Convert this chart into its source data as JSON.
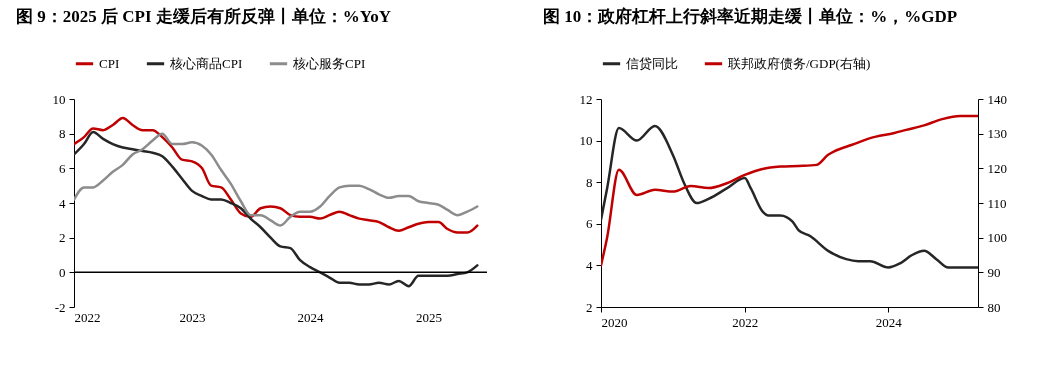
{
  "chart_data": [
    {
      "type": "line",
      "title": "图 9：2025 后 CPI 走缓后有所反弹丨单位：%YoY",
      "legend": "top",
      "grid": false,
      "x": [
        "2022-01",
        "2022-02",
        "2022-03",
        "2022-04",
        "2022-05",
        "2022-06",
        "2022-07",
        "2022-08",
        "2022-09",
        "2022-10",
        "2022-11",
        "2022-12",
        "2023-01",
        "2023-02",
        "2023-03",
        "2023-04",
        "2023-05",
        "2023-06",
        "2023-07",
        "2023-08",
        "2023-09",
        "2023-10",
        "2023-11",
        "2023-12",
        "2024-01",
        "2024-02",
        "2024-03",
        "2024-04",
        "2024-05",
        "2024-06",
        "2024-07",
        "2024-08",
        "2024-09",
        "2024-10",
        "2024-11",
        "2024-12",
        "2025-01",
        "2025-02",
        "2025-03",
        "2025-04",
        "2025-05",
        "2025-06"
      ],
      "xlim": [
        "2022-01",
        "2025-07"
      ],
      "xticks": [
        "2022",
        "2023",
        "2024",
        "2025"
      ],
      "ylim": [
        -2,
        10
      ],
      "yticks": [
        -2,
        0,
        2,
        4,
        6,
        8,
        10
      ],
      "ref_lines": [
        {
          "axis": "y",
          "value": 0,
          "color": "#000000"
        }
      ],
      "series": [
        {
          "name": "CPI",
          "color": "#c00000",
          "values": [
            7.4,
            7.8,
            8.3,
            8.2,
            8.5,
            8.9,
            8.5,
            8.2,
            8.2,
            7.8,
            7.2,
            6.5,
            6.4,
            6.0,
            5.0,
            4.9,
            4.2,
            3.4,
            3.2,
            3.7,
            3.8,
            3.7,
            3.3,
            3.2,
            3.2,
            3.1,
            3.3,
            3.5,
            3.3,
            3.1,
            3.0,
            2.9,
            2.6,
            2.4,
            2.6,
            2.8,
            2.9,
            2.9,
            2.5,
            2.3,
            2.3,
            2.7
          ]
        },
        {
          "name": "核心商品CPI",
          "color": "#262626",
          "values": [
            6.8,
            7.4,
            8.1,
            7.7,
            7.4,
            7.2,
            7.1,
            7.0,
            6.9,
            6.7,
            6.1,
            5.4,
            4.7,
            4.4,
            4.2,
            4.2,
            4.0,
            3.7,
            3.1,
            2.6,
            2.0,
            1.5,
            1.4,
            0.7,
            0.3,
            0.0,
            -0.3,
            -0.6,
            -0.6,
            -0.7,
            -0.7,
            -0.6,
            -0.7,
            -0.5,
            -0.8,
            -0.2,
            -0.2,
            -0.2,
            -0.2,
            -0.1,
            0.0,
            0.4
          ]
        },
        {
          "name": "核心服务CPI",
          "color": "#8c8c8c",
          "values": [
            4.2,
            4.9,
            4.9,
            5.3,
            5.8,
            6.2,
            6.8,
            7.1,
            7.6,
            8.0,
            7.4,
            7.4,
            7.5,
            7.3,
            6.8,
            5.9,
            5.1,
            4.1,
            3.3,
            3.3,
            3.0,
            2.7,
            3.2,
            3.5,
            3.5,
            3.8,
            4.4,
            4.9,
            5.0,
            5.0,
            4.8,
            4.5,
            4.3,
            4.4,
            4.4,
            4.1,
            4.0,
            3.9,
            3.6,
            3.3,
            3.5,
            3.8
          ]
        }
      ]
    },
    {
      "type": "line",
      "title": "图 10：政府杠杆上行斜率近期走缓丨单位：%，%GDP",
      "legend": "top",
      "grid": false,
      "xlim": [
        "2020-01",
        "2025-04"
      ],
      "xticks": [
        "2020",
        "2022",
        "2024"
      ],
      "ylim": [
        2,
        12
      ],
      "yticks": [
        2,
        4,
        6,
        8,
        10,
        12
      ],
      "y2lim": [
        80,
        140
      ],
      "y2ticks": [
        80,
        90,
        100,
        110,
        120,
        130,
        140
      ],
      "series": [
        {
          "name": "信贷同比",
          "color": "#262626",
          "x": [
            "2020-01",
            "2020-02",
            "2020-04",
            "2020-07",
            "2020-10",
            "2021-01",
            "2021-03",
            "2021-05",
            "2021-07",
            "2021-10",
            "2022-01",
            "2022-02",
            "2022-04",
            "2022-05",
            "2022-07",
            "2022-09",
            "2022-10",
            "2022-12",
            "2023-03",
            "2023-06",
            "2023-08",
            "2023-10",
            "2024-01",
            "2024-03",
            "2024-05",
            "2024-07",
            "2024-09",
            "2024-11",
            "2025-02",
            "2025-04"
          ],
          "values": [
            6.2,
            7.7,
            10.6,
            10.0,
            10.7,
            9.3,
            7.9,
            7.0,
            7.2,
            7.7,
            8.2,
            7.7,
            6.6,
            6.4,
            6.4,
            6.1,
            5.7,
            5.4,
            4.7,
            4.3,
            4.2,
            4.2,
            3.9,
            4.1,
            4.5,
            4.7,
            4.3,
            3.9,
            3.9,
            3.9
          ]
        },
        {
          "name": "联邦政府债务/GDP(右轴)",
          "color": "#c00000",
          "axis": "y2",
          "x": [
            "2020-01",
            "2020-02",
            "2020-04",
            "2020-07",
            "2020-10",
            "2021-01",
            "2021-04",
            "2021-07",
            "2021-10",
            "2022-01",
            "2022-04",
            "2022-07",
            "2022-10",
            "2023-01",
            "2023-03",
            "2023-04",
            "2023-07",
            "2023-10",
            "2024-02",
            "2024-04",
            "2024-07",
            "2024-10",
            "2025-01",
            "2025-04"
          ],
          "values": [
            92,
            100,
            119.6,
            112.3,
            113.8,
            113.3,
            114.9,
            114.3,
            115.7,
            118.1,
            119.8,
            120.5,
            120.7,
            121,
            123.9,
            124.9,
            126.8,
            128.7,
            130.2,
            131.1,
            132.4,
            134.2,
            135.1,
            135.1
          ]
        }
      ]
    }
  ]
}
